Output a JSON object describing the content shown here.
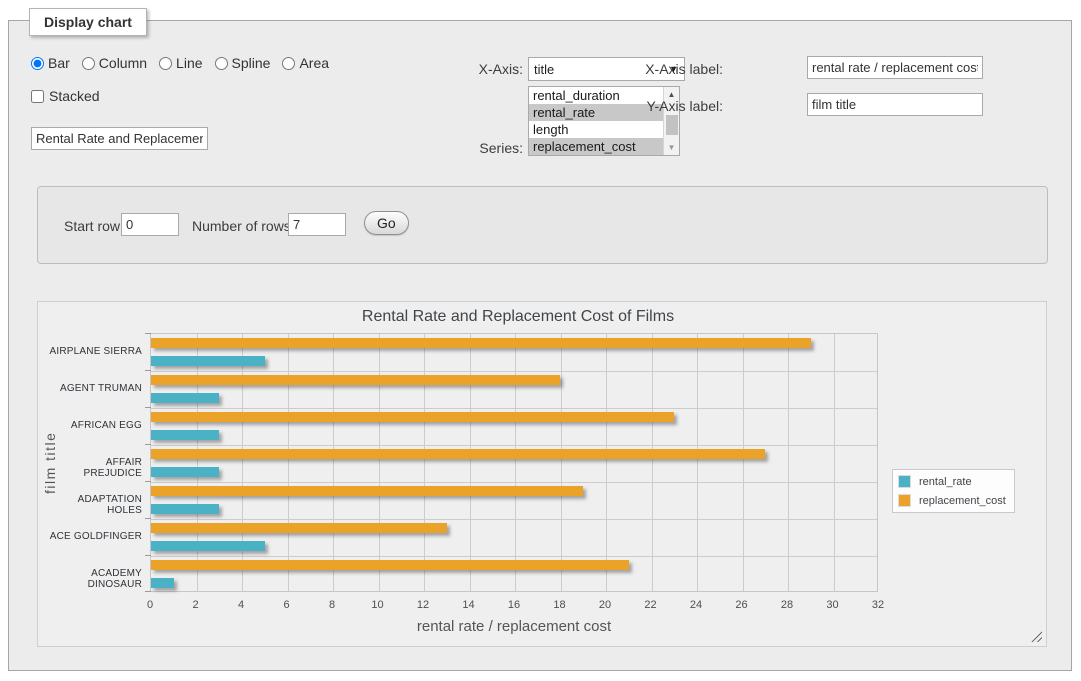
{
  "panel_title": "Display chart",
  "controls": {
    "chart_types": [
      {
        "label": "Bar",
        "selected": true
      },
      {
        "label": "Column",
        "selected": false
      },
      {
        "label": "Line",
        "selected": false
      },
      {
        "label": "Spline",
        "selected": false
      },
      {
        "label": "Area",
        "selected": false
      }
    ],
    "stacked_label": "Stacked",
    "stacked_checked": false,
    "chart_title_value": "Rental Rate and Replacement Cost of Films",
    "x_axis_label_text": "X-Axis:",
    "x_axis_value": "title",
    "series_label_text": "Series:",
    "series_options": [
      {
        "label": "rental_duration",
        "selected": false
      },
      {
        "label": "rental_rate",
        "selected": true
      },
      {
        "label": "length",
        "selected": false
      },
      {
        "label": "replacement_cost",
        "selected": true
      }
    ],
    "x_axis_field": {
      "label": "X-Axis label:",
      "value": "rental rate / replacement cost"
    },
    "y_axis_field": {
      "label": "Y-Axis label:",
      "value": "film title"
    }
  },
  "query": {
    "start_row_label": "Start row:",
    "start_row_value": "0",
    "rows_label": "Number of rows:",
    "rows_value": "7",
    "go_label": "Go"
  },
  "chart_data": {
    "type": "bar",
    "orientation": "horizontal",
    "title": "Rental Rate and Replacement Cost of Films",
    "xlabel": "rental rate / replacement cost",
    "ylabel": "film title",
    "categories": [
      "AIRPLANE SIERRA",
      "AGENT TRUMAN",
      "AFRICAN EGG",
      "AFFAIR PREJUDICE",
      "ADAPTATION HOLES",
      "ACE GOLDFINGER",
      "ACADEMY DINOSAUR"
    ],
    "series": [
      {
        "name": "rental_rate",
        "color": "#4bb2c5",
        "values": [
          4.99,
          2.99,
          2.99,
          2.99,
          2.99,
          4.99,
          0.99
        ]
      },
      {
        "name": "replacement_cost",
        "color": "#EAA228",
        "values": [
          28.99,
          17.99,
          22.99,
          26.99,
          18.99,
          12.99,
          20.99
        ]
      }
    ],
    "xlim": [
      0,
      32
    ],
    "xticks": [
      0,
      2,
      4,
      6,
      8,
      10,
      12,
      14,
      16,
      18,
      20,
      22,
      24,
      26,
      28,
      30,
      32
    ],
    "grid": true,
    "grid_color": "#cccccc",
    "legend_position": "right"
  }
}
